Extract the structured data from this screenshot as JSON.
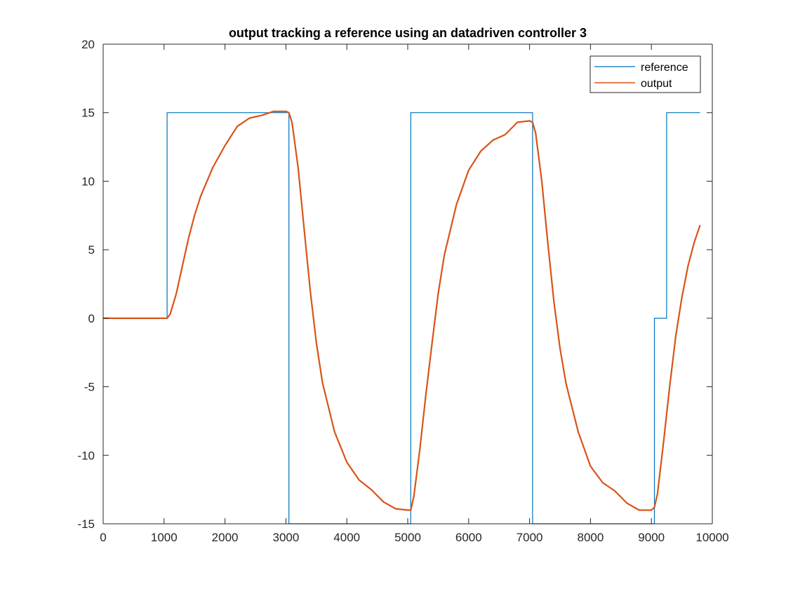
{
  "chart_data": {
    "type": "line",
    "title": "output tracking a reference using an datadriven controller 3",
    "xlabel": "",
    "ylabel": "",
    "xlim": [
      0,
      10000
    ],
    "ylim": [
      -15,
      20
    ],
    "xticks": [
      0,
      1000,
      2000,
      3000,
      4000,
      5000,
      6000,
      7000,
      8000,
      9000,
      10000
    ],
    "yticks": [
      -15,
      -10,
      -5,
      0,
      5,
      10,
      15,
      20
    ],
    "xtick_labels": [
      "0",
      "1000",
      "2000",
      "3000",
      "4000",
      "5000",
      "6000",
      "7000",
      "8000",
      "9000",
      "10000"
    ],
    "ytick_labels": [
      "-15",
      "-10",
      "-5",
      "0",
      "5",
      "10",
      "15",
      "20"
    ],
    "grid": false,
    "legend_position": "top-right",
    "series": [
      {
        "name": "reference",
        "color": "#0072BD",
        "x": [
          0,
          1050,
          1050,
          3050,
          3050,
          5050,
          5050,
          7050,
          7050,
          9050,
          9050,
          9250,
          9250,
          9800
        ],
        "y": [
          0,
          0,
          15,
          15,
          -15,
          -15,
          15,
          15,
          -15,
          -15,
          0,
          0,
          15,
          15
        ]
      },
      {
        "name": "output",
        "color": "#D95319",
        "x": [
          0,
          1050,
          1100,
          1200,
          1300,
          1400,
          1500,
          1600,
          1800,
          2000,
          2200,
          2400,
          2600,
          2800,
          3000,
          3050,
          3100,
          3200,
          3300,
          3400,
          3500,
          3600,
          3800,
          4000,
          4200,
          4400,
          4600,
          4800,
          5000,
          5050,
          5100,
          5200,
          5300,
          5400,
          5500,
          5600,
          5800,
          6000,
          6200,
          6400,
          6600,
          6800,
          7000,
          7050,
          7100,
          7200,
          7300,
          7400,
          7500,
          7600,
          7800,
          8000,
          8200,
          8400,
          8600,
          8800,
          9000,
          9050,
          9100,
          9200,
          9300,
          9400,
          9500,
          9600,
          9700,
          9800
        ],
        "y": [
          0,
          0,
          0.3,
          1.8,
          3.8,
          5.8,
          7.5,
          8.9,
          11.0,
          12.6,
          14.0,
          14.6,
          14.8,
          15.1,
          15.1,
          15.0,
          14.3,
          11.0,
          6.5,
          2.0,
          -1.8,
          -4.7,
          -8.3,
          -10.5,
          -11.8,
          -12.5,
          -13.4,
          -13.9,
          -14.0,
          -14.0,
          -13.0,
          -9.5,
          -5.5,
          -1.8,
          1.8,
          4.6,
          8.3,
          10.8,
          12.2,
          13.0,
          13.4,
          14.3,
          14.4,
          14.3,
          13.5,
          10.0,
          5.5,
          1.2,
          -2.2,
          -4.8,
          -8.3,
          -10.8,
          -12.0,
          -12.6,
          -13.5,
          -14.0,
          -14.0,
          -13.8,
          -12.8,
          -9.0,
          -5.0,
          -1.3,
          1.5,
          3.8,
          5.5,
          6.8
        ]
      }
    ]
  }
}
